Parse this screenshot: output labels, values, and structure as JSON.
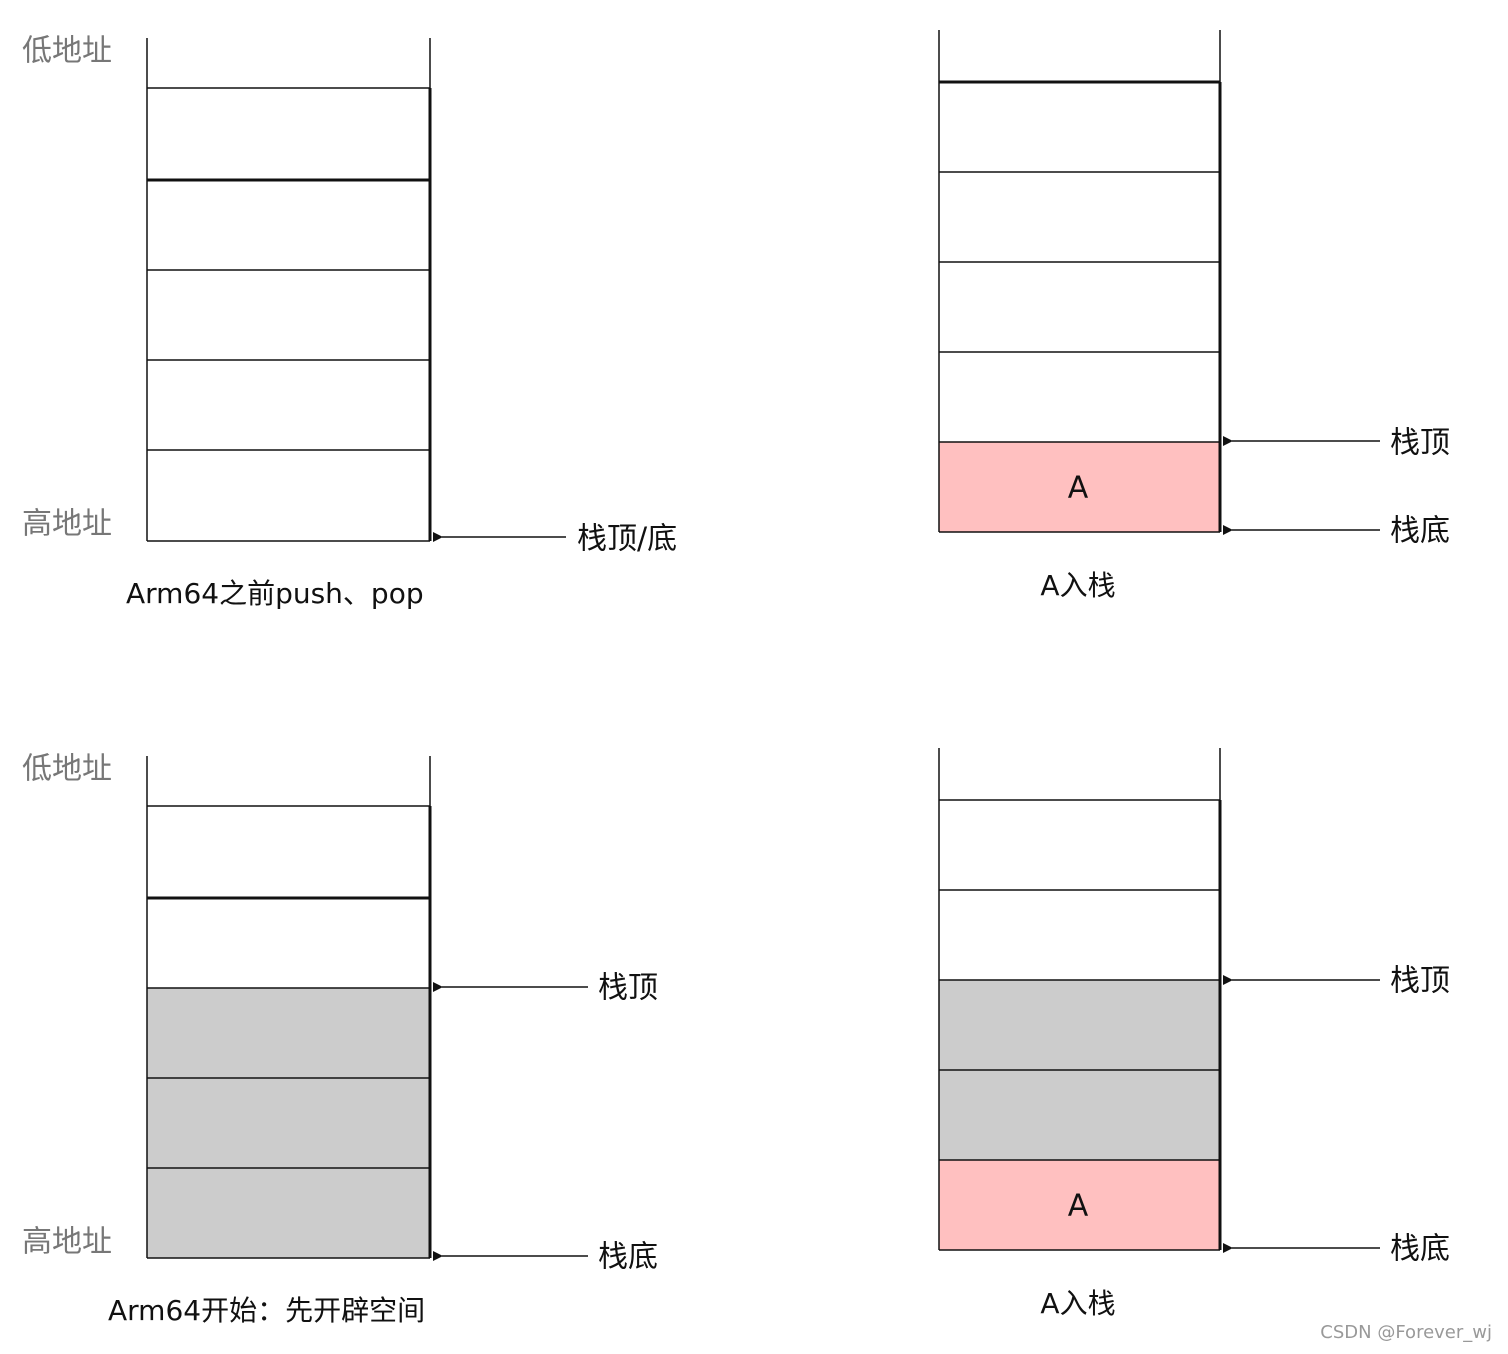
{
  "panels": [
    {
      "low_label": "低地址",
      "high_label": "高地址",
      "pointers": [
        "栈顶/底"
      ],
      "caption": "Arm64之前push、pop"
    },
    {
      "pointers": [
        "栈顶",
        "栈底"
      ],
      "cell_label": "A",
      "caption": "A入栈"
    },
    {
      "low_label": "低地址",
      "high_label": "高地址",
      "pointers": [
        "栈顶",
        "栈底"
      ],
      "caption": "Arm64开始：先开辟空间"
    },
    {
      "pointers": [
        "栈顶",
        "栈底"
      ],
      "cell_label": "A",
      "caption": "A入栈"
    }
  ],
  "watermark": "CSDN @Forever_wj"
}
